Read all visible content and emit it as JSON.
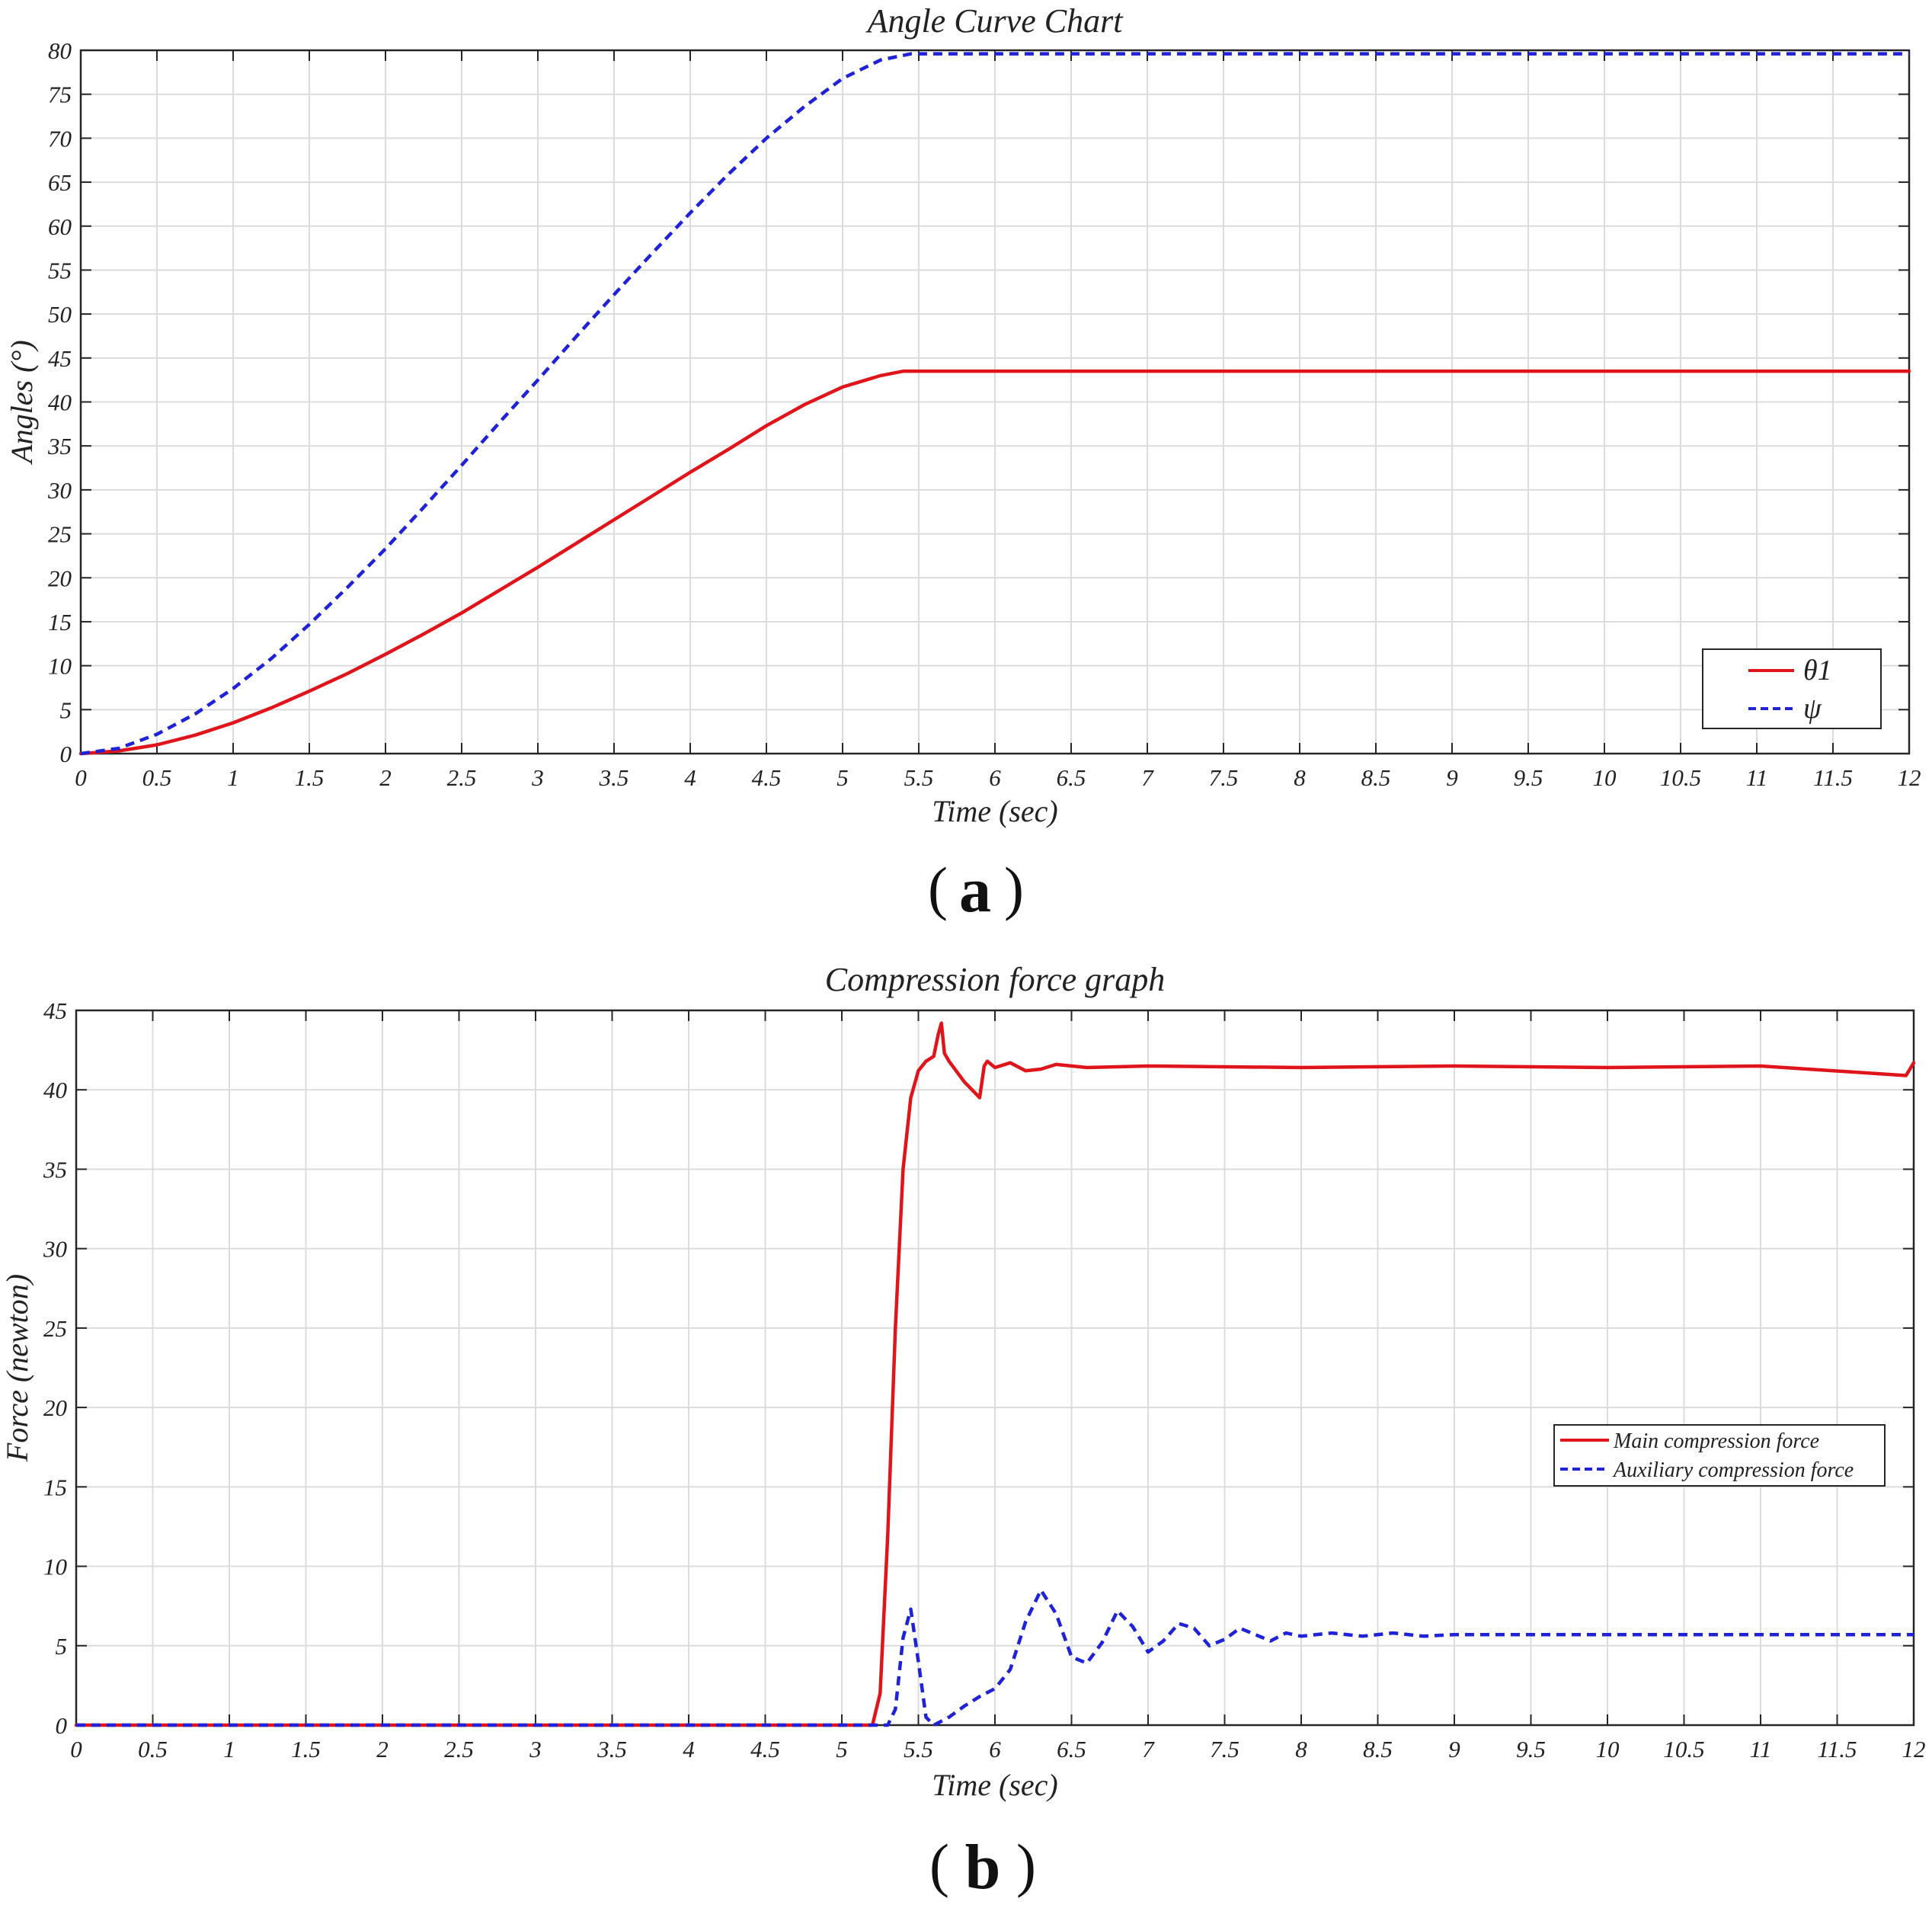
{
  "chart_data": [
    {
      "type": "line",
      "panel_label": "a",
      "title": "Angle Curve Chart",
      "xlabel": "Time (sec)",
      "ylabel": "Angles (°)",
      "xlim": [
        0,
        12
      ],
      "ylim": [
        0,
        80
      ],
      "x_ticks": [
        0,
        0.5,
        1,
        1.5,
        2,
        2.5,
        3,
        3.5,
        4,
        4.5,
        5,
        5.5,
        6,
        6.5,
        7,
        7.5,
        8,
        8.5,
        9,
        9.5,
        10,
        10.5,
        11,
        11.5,
        12
      ],
      "y_ticks": [
        0,
        5,
        10,
        15,
        20,
        25,
        30,
        35,
        40,
        45,
        50,
        55,
        60,
        65,
        70,
        75,
        80
      ],
      "grid": true,
      "legend_position": "bottom-right",
      "series": [
        {
          "name": "θ1",
          "color": "#e0141b",
          "style": "solid",
          "x": [
            0,
            0.25,
            0.5,
            0.75,
            1,
            1.25,
            1.5,
            1.75,
            2,
            2.25,
            2.5,
            2.75,
            3,
            3.25,
            3.5,
            3.75,
            4,
            4.25,
            4.5,
            4.75,
            5,
            5.25,
            5.4,
            6,
            7,
            8,
            9,
            10,
            11,
            12
          ],
          "y": [
            0,
            0.3,
            1.0,
            2.1,
            3.5,
            5.2,
            7.1,
            9.1,
            11.3,
            13.6,
            16.0,
            18.6,
            21.2,
            23.9,
            26.6,
            29.3,
            32.0,
            34.6,
            37.3,
            39.7,
            41.7,
            43.0,
            43.5,
            43.5,
            43.5,
            43.5,
            43.5,
            43.5,
            43.5,
            43.5
          ]
        },
        {
          "name": "ψ",
          "color": "#1f22d6",
          "style": "dashed",
          "x": [
            0,
            0.25,
            0.5,
            0.75,
            1,
            1.25,
            1.5,
            1.75,
            2,
            2.25,
            2.5,
            2.75,
            3,
            3.25,
            3.5,
            3.75,
            4,
            4.25,
            4.5,
            4.75,
            5,
            5.25,
            5.45,
            6,
            7,
            8,
            9,
            10,
            11,
            12
          ],
          "y": [
            0,
            0.6,
            2.2,
            4.5,
            7.4,
            10.8,
            14.7,
            18.9,
            23.3,
            28.0,
            32.8,
            37.7,
            42.5,
            47.4,
            52.2,
            56.9,
            61.5,
            65.9,
            70.0,
            73.6,
            76.8,
            78.9,
            79.6,
            79.6,
            79.6,
            79.6,
            79.6,
            79.6,
            79.6,
            79.6
          ]
        }
      ]
    },
    {
      "type": "line",
      "panel_label": "b",
      "title": "Compression force graph",
      "xlabel": "Time (sec)",
      "ylabel": "Force (newton)",
      "xlim": [
        0,
        12
      ],
      "ylim": [
        0,
        45
      ],
      "x_ticks": [
        0,
        0.5,
        1,
        1.5,
        2,
        2.5,
        3,
        3.5,
        4,
        4.5,
        5,
        5.5,
        6,
        6.5,
        7,
        7.5,
        8,
        8.5,
        9,
        9.5,
        10,
        10.5,
        11,
        11.5,
        12
      ],
      "y_ticks": [
        0,
        5,
        10,
        15,
        20,
        25,
        30,
        35,
        40,
        45
      ],
      "grid": true,
      "legend_position": "right",
      "series": [
        {
          "name": "Main compression force",
          "color": "#e0141b",
          "style": "solid",
          "x": [
            0,
            5.2,
            5.25,
            5.3,
            5.35,
            5.4,
            5.45,
            5.5,
            5.55,
            5.6,
            5.63,
            5.65,
            5.67,
            5.7,
            5.8,
            5.9,
            5.93,
            5.95,
            6.0,
            6.1,
            6.2,
            6.3,
            6.4,
            6.6,
            7,
            8,
            9,
            10,
            11,
            11.95,
            12
          ],
          "y": [
            0,
            0,
            2,
            12,
            25,
            35,
            39.5,
            41.2,
            41.8,
            42.1,
            43.5,
            44.2,
            42.3,
            41.8,
            40.5,
            39.5,
            41.5,
            41.8,
            41.4,
            41.7,
            41.2,
            41.3,
            41.6,
            41.4,
            41.5,
            41.4,
            41.5,
            41.4,
            41.5,
            40.9,
            41.7
          ]
        },
        {
          "name": "Auxiliary compression force",
          "color": "#1f22d6",
          "style": "dashed",
          "x": [
            0,
            5.3,
            5.35,
            5.4,
            5.45,
            5.5,
            5.55,
            5.6,
            5.7,
            5.8,
            5.9,
            6.0,
            6.1,
            6.2,
            6.3,
            6.4,
            6.5,
            6.6,
            6.7,
            6.8,
            6.9,
            7.0,
            7.1,
            7.2,
            7.3,
            7.4,
            7.5,
            7.6,
            7.7,
            7.8,
            7.9,
            8.0,
            8.2,
            8.4,
            8.6,
            8.8,
            9,
            10,
            11,
            12
          ],
          "y": [
            0,
            0,
            1,
            5.5,
            7.3,
            4,
            0.5,
            0,
            0.5,
            1.2,
            1.8,
            2.3,
            3.5,
            6.5,
            8.5,
            7,
            4.3,
            3.9,
            5.2,
            7.2,
            6.2,
            4.6,
            5.3,
            6.4,
            6.1,
            5.0,
            5.4,
            6.1,
            5.7,
            5.3,
            5.8,
            5.6,
            5.8,
            5.6,
            5.8,
            5.6,
            5.7,
            5.7,
            5.7,
            5.7
          ]
        }
      ]
    }
  ]
}
